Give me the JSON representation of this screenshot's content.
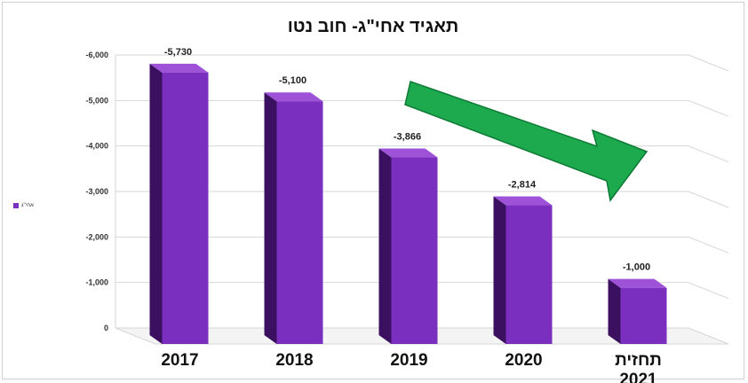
{
  "chart_data": {
    "type": "bar",
    "title": "תאגיד אחי\"ג- חוב נטו",
    "categories": [
      "2017",
      "2018",
      "2019",
      "2020",
      "תחזית 2021"
    ],
    "series": [
      {
        "name": "אחי\"ג",
        "values": [
          -5730,
          -5100,
          -3866,
          -2814,
          -1000
        ]
      }
    ],
    "data_labels": [
      "-5,730",
      "-5,100",
      "-3,866",
      "-2,814",
      "-1,000"
    ],
    "y_ticks": [
      "0",
      "-1,000",
      "-2,000",
      "-3,000",
      "-4,000",
      "-5,000",
      "-6,000"
    ],
    "ylim": [
      0,
      -6000
    ],
    "grid": true,
    "legend_position": "left",
    "annotation": "green downward-right trend arrow",
    "colors": {
      "bar_front": "#7b2fbf",
      "bar_side": "#3b1060",
      "bar_top": "#9d52d8",
      "arrow": "#1daa4e",
      "arrow_outline": "#0d7a35"
    }
  }
}
